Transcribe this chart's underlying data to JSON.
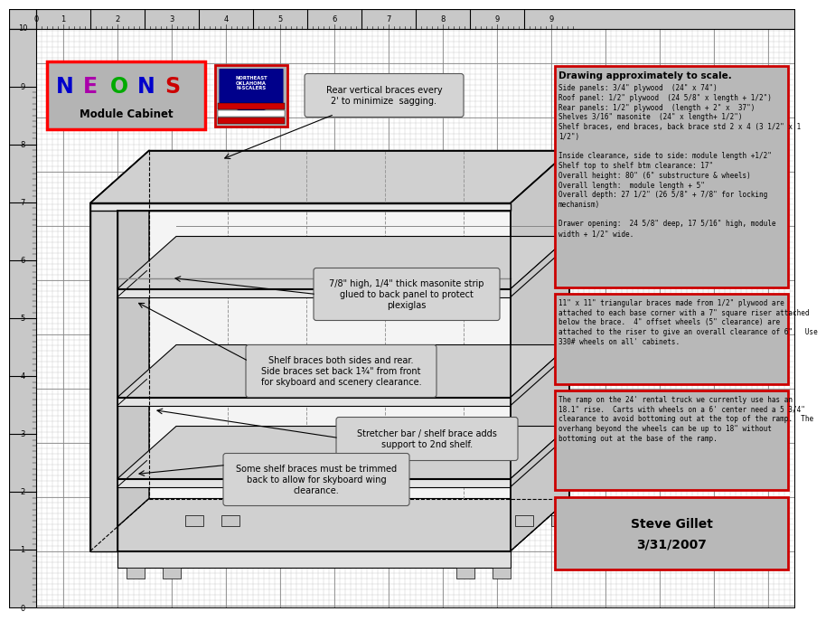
{
  "neons_colors": [
    "#0000cc",
    "#aa00aa",
    "#00aa00",
    "#0000cc",
    "#cc0000"
  ],
  "info_box1_title": "Drawing approximately to scale.",
  "info_box1_lines": [
    "Side panels: 3/4\" plywood  (24\" x 74\")",
    "Roof panel: 1/2\" plywood  (24 5/8\" x length + 1/2\")",
    "Rear panels: 1/2\" plywood  (length + 2\" x  37\")",
    "Shelves 3/16\" masonite  (24\" x length+ 1/2\")",
    "Shelf braces, end braces, back brace std 2 x 4 (3 1/2\" x 1",
    "1/2\")",
    "",
    "Inside clearance, side to side: module length +1/2\"",
    "Shelf top to shelf btm clearance: 17\"",
    "Overall height: 80\" (6\" substructure & wheels)",
    "Overall length:  module length + 5\"",
    "Overall depth: 27 1/2\" (26 5/8\" + 7/8\" for locking",
    "mechanism)",
    "",
    "Drawer opening:  24 5/8\" deep, 17 5/16\" high, module",
    "width + 1/2\" wide."
  ],
  "info_box2_lines": [
    "11\" x 11\" triangular braces made from 1/2\" plywood are",
    "attached to each base corner with a 7\" square riser attached",
    "below the brace.  4\" offset wheels (5\" clearance) are",
    "attached to the riser to give an overall clearance of 6\".  Use",
    "330# wheels on all' cabinets."
  ],
  "info_box3_lines": [
    "The ramp on the 24' rental truck we currently use has an",
    "18.1\" rise.  Carts with wheels on a 6' center need a 5 3/4\"",
    "clearance to avoid bottoming out at the top of the ramp.  The",
    "overhang beyond the wheels can be up to 18\" without",
    "bottoming out at the base of the ramp."
  ],
  "author": "Steve Gillet",
  "date": "3/31/2007",
  "callout1": "Rear vertical braces every\n2' to minimize  sagging.",
  "callout2": "7/8\" high, 1/4\" thick masonite strip\nglued to back panel to protect\nplexiglas",
  "callout3": "Shelf braces both sides and rear.\nSide braces set back 1¾\" from front\nfor skyboard and scenery clearance.",
  "callout4": "Stretcher bar / shelf brace adds\nsupport to 2nd shelf.",
  "callout5": "Some shelf braces must be trimmed\nback to allow for skyboard wing\nclearance."
}
